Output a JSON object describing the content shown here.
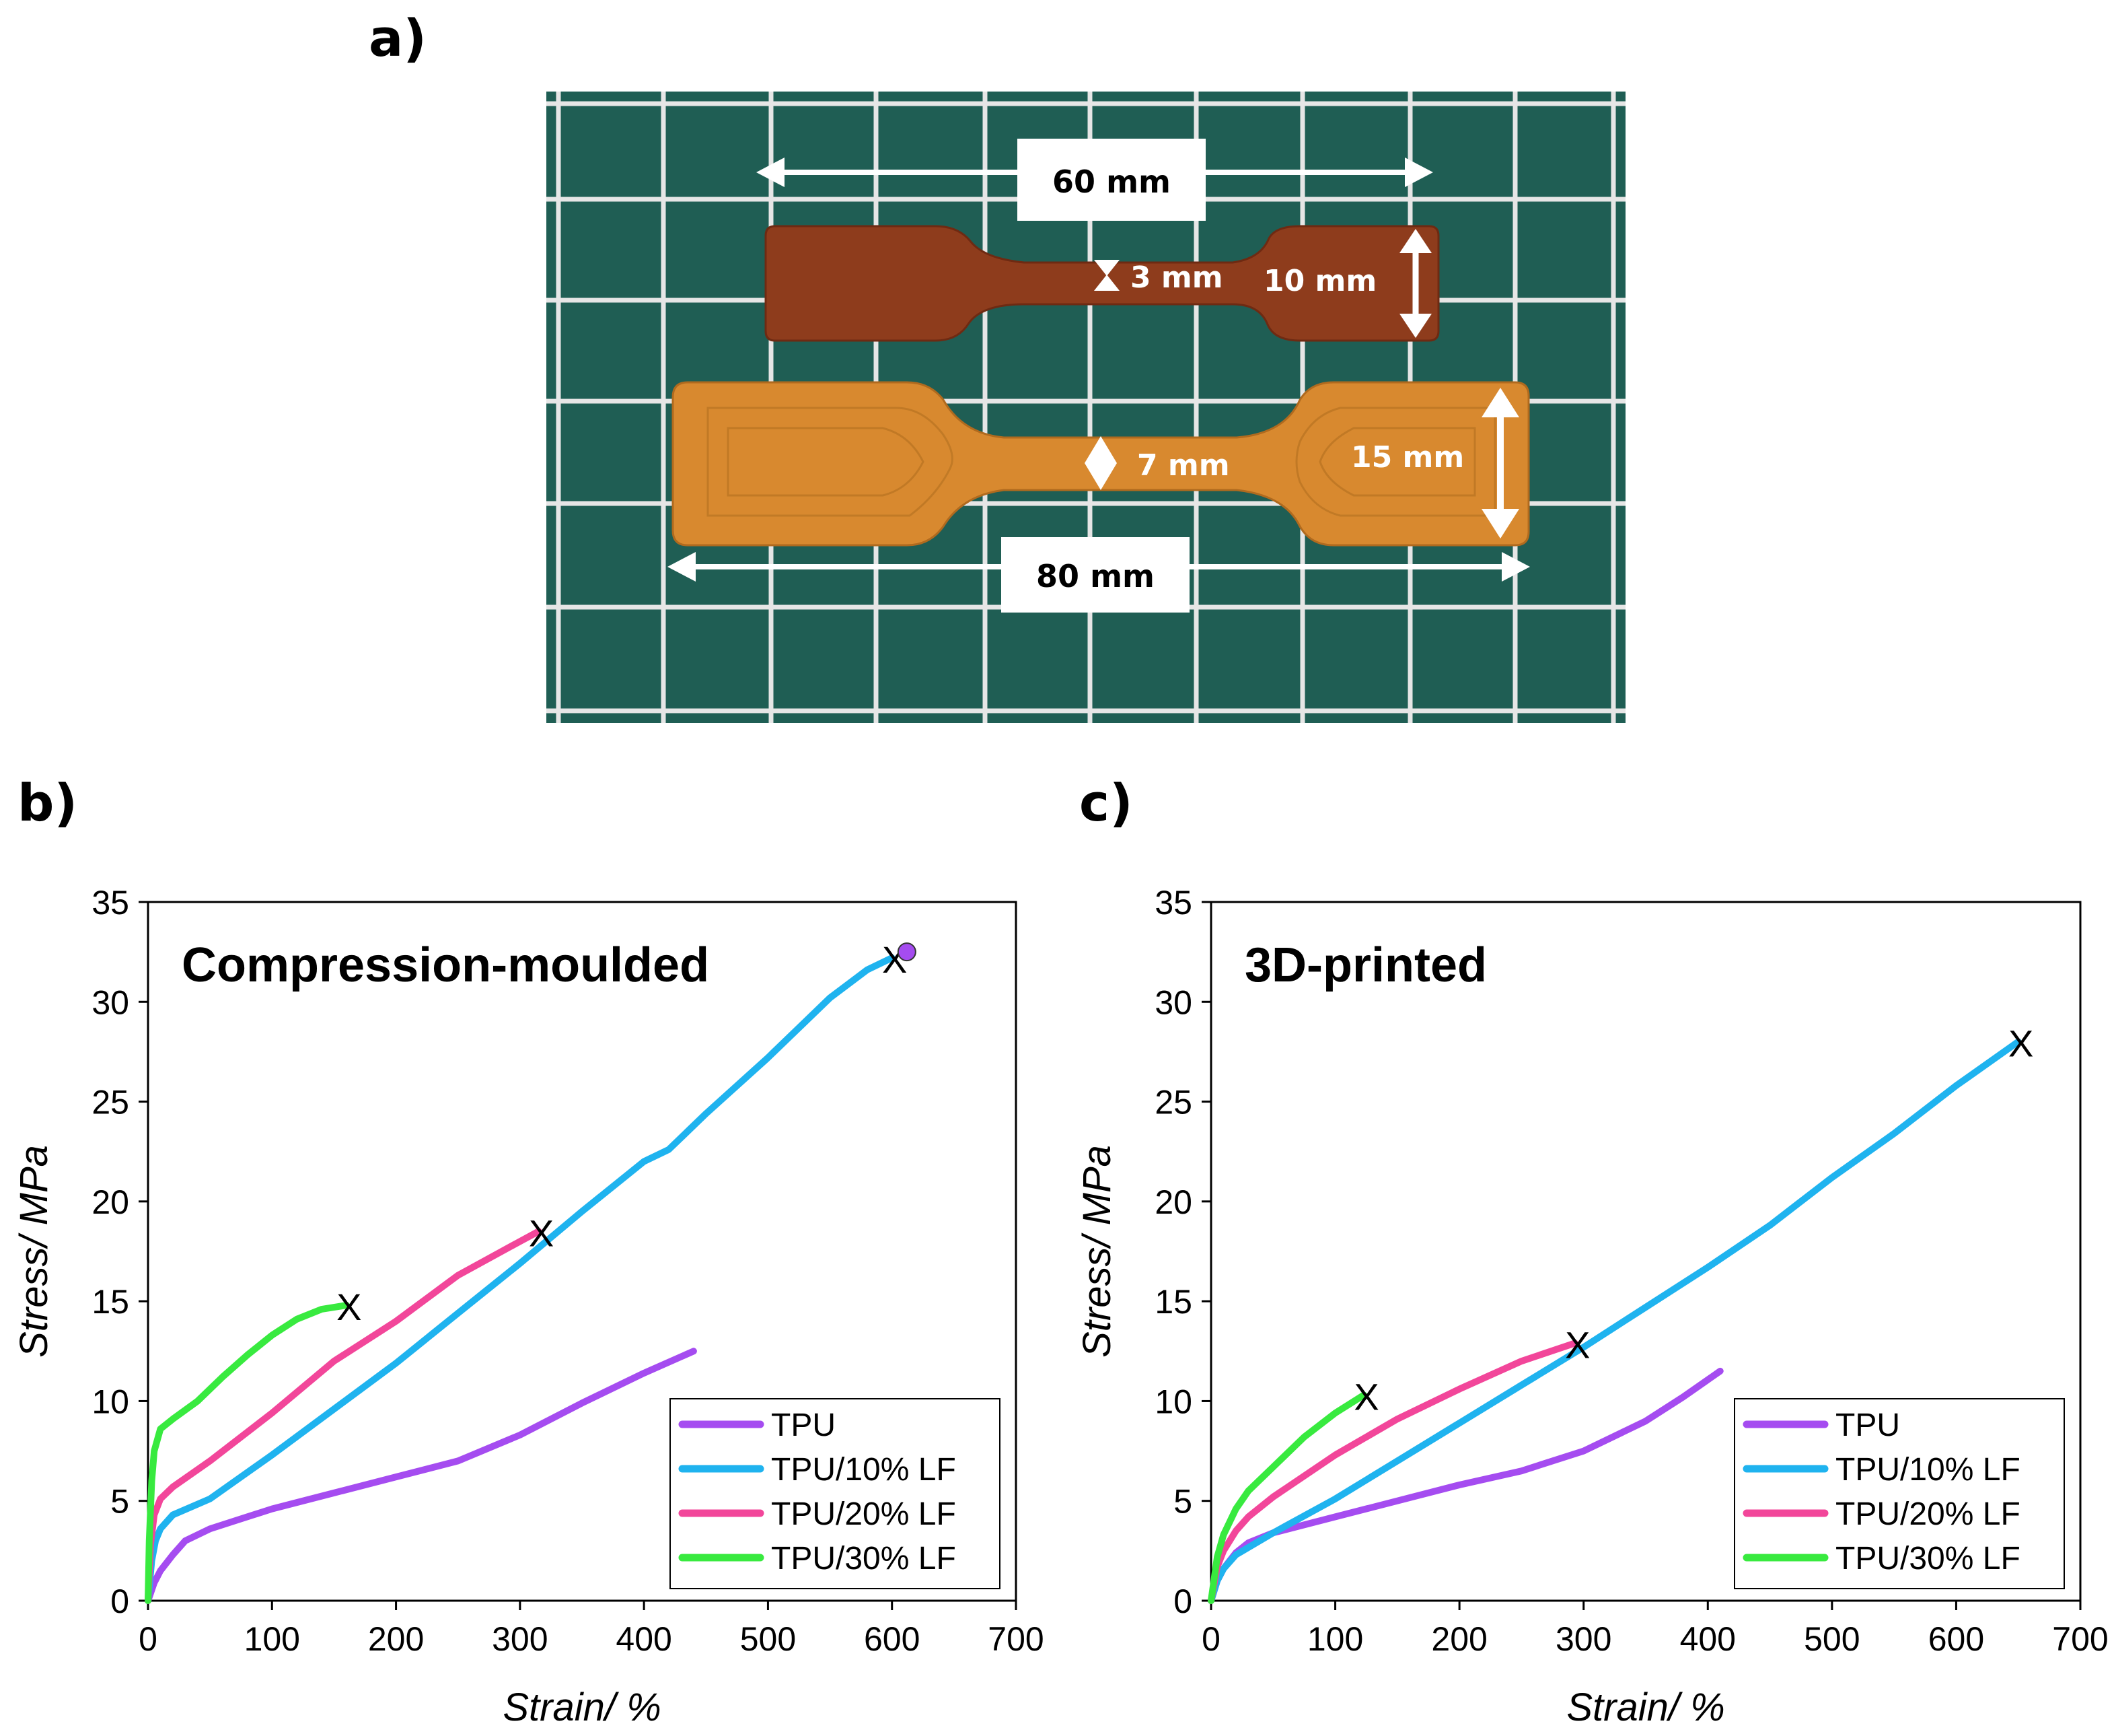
{
  "figure": {
    "panel_a_label": "a)",
    "panel_b_label": "b)",
    "panel_c_label": "c)"
  },
  "photo": {
    "dims": {
      "top_length": "60 mm",
      "top_narrow": "3 mm",
      "top_end": "10 mm",
      "bottom_narrow": "7 mm",
      "bottom_end": "15 mm",
      "bottom_length": "80 mm"
    },
    "colors": {
      "mat": "#1f5e54",
      "grid": "#e6e6e6",
      "specimen_small": "#8e3c1c",
      "specimen_large": "#d8892f",
      "label_box": "#ffffff"
    }
  },
  "chart_data": [
    {
      "type": "line",
      "title": "Compression-moulded",
      "xlabel": "Strain/ %",
      "ylabel": "Stress/ MPa",
      "xlim": [
        0,
        700
      ],
      "ylim": [
        0,
        35
      ],
      "xticks": [
        0,
        100,
        200,
        300,
        400,
        500,
        600,
        700
      ],
      "yticks": [
        0,
        5,
        10,
        15,
        20,
        25,
        30,
        35
      ],
      "grid": false,
      "legend_position": "bottom-right",
      "series": [
        {
          "name": "TPU",
          "color": "#a54cf0",
          "x": [
            0,
            5,
            10,
            20,
            30,
            50,
            75,
            100,
            150,
            200,
            250,
            300,
            350,
            400,
            440
          ],
          "y": [
            0,
            0.9,
            1.5,
            2.3,
            3.0,
            3.6,
            4.1,
            4.6,
            5.4,
            6.2,
            7.0,
            8.3,
            9.9,
            11.4,
            12.5
          ],
          "end_marker": ""
        },
        {
          "name": "TPU/10% LF",
          "color": "#1fb3ef",
          "x": [
            0,
            3,
            6,
            10,
            20,
            50,
            100,
            150,
            200,
            250,
            300,
            350,
            400,
            420,
            450,
            500,
            550,
            580,
            600
          ],
          "y": [
            0,
            2.0,
            3.0,
            3.6,
            4.3,
            5.1,
            7.3,
            9.6,
            11.9,
            14.4,
            16.9,
            19.5,
            22.0,
            22.6,
            24.4,
            27.2,
            30.2,
            31.6,
            32.2
          ],
          "end_marker": "X"
        },
        {
          "name": "TPU/20% LF",
          "color": "#f2469a",
          "x": [
            0,
            2,
            5,
            10,
            20,
            50,
            100,
            150,
            200,
            250,
            300,
            315
          ],
          "y": [
            0,
            2.8,
            4.3,
            5.1,
            5.7,
            7.0,
            9.4,
            12.0,
            14.0,
            16.3,
            18.0,
            18.5
          ],
          "end_marker": "X"
        },
        {
          "name": "TPU/30% LF",
          "color": "#38ea3f",
          "x": [
            0,
            1,
            3,
            5,
            10,
            20,
            40,
            60,
            80,
            100,
            120,
            140,
            160
          ],
          "y": [
            0,
            3.0,
            6.0,
            7.5,
            8.6,
            9.1,
            10.0,
            11.2,
            12.3,
            13.3,
            14.1,
            14.6,
            14.8
          ],
          "end_marker": "X"
        }
      ],
      "extra_marker": {
        "x": 612,
        "y": 32.5,
        "color": "#a54cf0"
      }
    },
    {
      "type": "line",
      "title": "3D-printed",
      "xlabel": "Strain/ %",
      "ylabel": "Stress/ MPa",
      "xlim": [
        0,
        700
      ],
      "ylim": [
        0,
        35
      ],
      "xticks": [
        0,
        100,
        200,
        300,
        400,
        500,
        600,
        700
      ],
      "yticks": [
        0,
        5,
        10,
        15,
        20,
        25,
        30,
        35
      ],
      "grid": false,
      "legend_position": "bottom-right",
      "series": [
        {
          "name": "TPU",
          "color": "#a54cf0",
          "x": [
            0,
            5,
            10,
            20,
            30,
            50,
            100,
            150,
            200,
            250,
            300,
            350,
            380,
            410
          ],
          "y": [
            0,
            1.0,
            1.6,
            2.4,
            2.9,
            3.4,
            4.2,
            5.0,
            5.8,
            6.5,
            7.5,
            9.0,
            10.2,
            11.5
          ],
          "end_marker": ""
        },
        {
          "name": "TPU/10% LF",
          "color": "#1fb3ef",
          "x": [
            0,
            5,
            10,
            20,
            50,
            100,
            150,
            200,
            250,
            300,
            350,
            400,
            450,
            500,
            550,
            600,
            650
          ],
          "y": [
            0,
            1.0,
            1.6,
            2.3,
            3.4,
            5.1,
            7.0,
            8.9,
            10.8,
            12.7,
            14.7,
            16.7,
            18.8,
            21.2,
            23.4,
            25.8,
            28.0
          ],
          "end_marker": "X"
        },
        {
          "name": "TPU/20% LF",
          "color": "#f2469a",
          "x": [
            0,
            5,
            10,
            20,
            30,
            50,
            100,
            150,
            200,
            250,
            293
          ],
          "y": [
            0,
            1.7,
            2.5,
            3.5,
            4.2,
            5.2,
            7.3,
            9.1,
            10.6,
            12.0,
            12.9
          ],
          "end_marker": "X"
        },
        {
          "name": "TPU/30% LF",
          "color": "#38ea3f",
          "x": [
            0,
            5,
            10,
            20,
            30,
            50,
            75,
            100,
            123
          ],
          "y": [
            0,
            2.2,
            3.3,
            4.6,
            5.5,
            6.7,
            8.2,
            9.4,
            10.3
          ],
          "end_marker": "X"
        }
      ]
    }
  ]
}
